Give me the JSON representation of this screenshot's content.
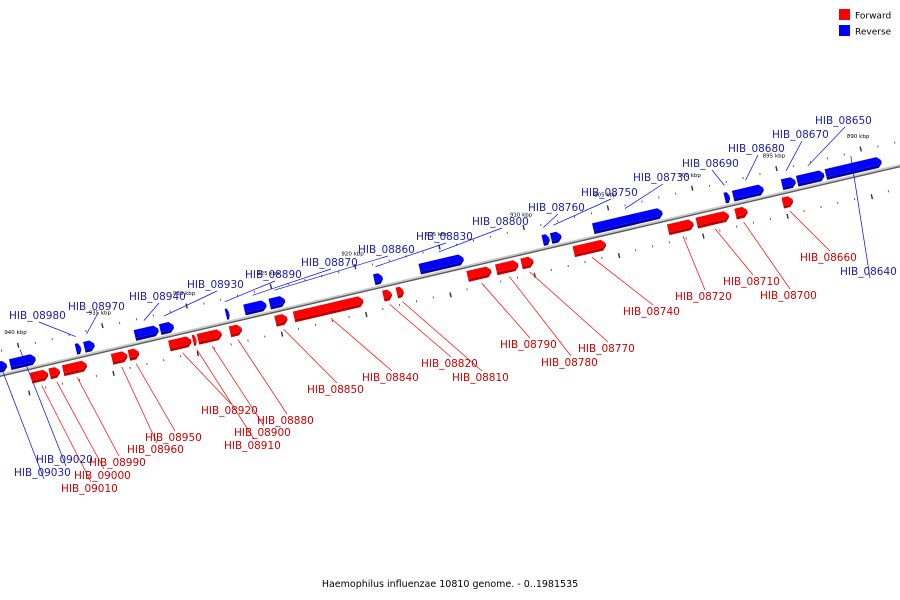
{
  "colors": {
    "forward": "#ff0000",
    "forward_side": "#c00000",
    "forward_text": "#cc0000",
    "reverse": "#0000ff",
    "reverse_side": "#0000a8",
    "reverse_text": "#1a1aaa",
    "backbone": "#8a8a8a"
  },
  "legend": {
    "forward_label": "Forward",
    "reverse_label": "Reverse"
  },
  "caption": "Haemophilus influenzae 10810 genome. - 0..1981535",
  "axis": {
    "kbp_range": [
      888,
      942
    ],
    "tick_labels": [
      {
        "kbp": 890,
        "text": "890 kbp"
      },
      {
        "kbp": 895,
        "text": "895 kbp"
      },
      {
        "kbp": 900,
        "text": "900 kbp"
      },
      {
        "kbp": 905,
        "text": "905 kbp"
      },
      {
        "kbp": 910,
        "text": "910 kbp"
      },
      {
        "kbp": 915,
        "text": "915 kbp"
      },
      {
        "kbp": 920,
        "text": "920 kbp"
      },
      {
        "kbp": 925,
        "text": "925 kbp"
      },
      {
        "kbp": 930,
        "text": "930 kbp"
      },
      {
        "kbp": 935,
        "text": "935 kbp"
      },
      {
        "kbp": 940,
        "text": "940 kbp"
      }
    ]
  },
  "genes": [
    {
      "name": "HIB_08640",
      "strand": "reverse",
      "start": 889.0,
      "end": 892.3
    },
    {
      "name": "HIB_08650",
      "strand": "reverse",
      "start": 892.4,
      "end": 894.0
    },
    {
      "name": "HIB_08670",
      "strand": "reverse",
      "start": 894.1,
      "end": 894.9
    },
    {
      "name": "HIB_08660",
      "strand": "forward",
      "start": 894.5,
      "end": 895.1
    },
    {
      "name": "HIB_08680",
      "strand": "reverse",
      "start": 896.0,
      "end": 897.8
    },
    {
      "name": "HIB_08690",
      "strand": "reverse",
      "start": 898.0,
      "end": 898.3
    },
    {
      "name": "HIB_08700",
      "strand": "forward",
      "start": 897.2,
      "end": 897.9
    },
    {
      "name": "HIB_08710",
      "strand": "forward",
      "start": 898.3,
      "end": 900.2
    },
    {
      "name": "HIB_08720",
      "strand": "forward",
      "start": 900.4,
      "end": 901.9
    },
    {
      "name": "HIB_08730",
      "strand": "reverse",
      "start": 902.0,
      "end": 906.1
    },
    {
      "name": "HIB_08740",
      "strand": "forward",
      "start": 905.6,
      "end": 907.5
    },
    {
      "name": "HIB_08750",
      "strand": "reverse",
      "start": 908.0,
      "end": 908.6
    },
    {
      "name": "HIB_08760",
      "strand": "reverse",
      "start": 908.7,
      "end": 909.1
    },
    {
      "name": "HIB_08770",
      "strand": "forward",
      "start": 909.9,
      "end": 910.6
    },
    {
      "name": "HIB_08780",
      "strand": "forward",
      "start": 910.8,
      "end": 912.1
    },
    {
      "name": "HIB_08790",
      "strand": "forward",
      "start": 912.4,
      "end": 913.8
    },
    {
      "name": "HIB_08800",
      "strand": "reverse",
      "start": 913.8,
      "end": 916.4
    },
    {
      "name": "HIB_08810",
      "strand": "forward",
      "start": 917.6,
      "end": 918.0
    },
    {
      "name": "HIB_08820",
      "strand": "forward",
      "start": 918.3,
      "end": 918.8
    },
    {
      "name": "HIB_08830",
      "strand": "reverse",
      "start": 918.6,
      "end": 919.1
    },
    {
      "name": "HIB_08840",
      "strand": "forward",
      "start": 920.0,
      "end": 924.1
    },
    {
      "name": "HIB_08850",
      "strand": "forward",
      "start": 924.5,
      "end": 925.2
    },
    {
      "name": "HIB_08860",
      "strand": "reverse",
      "start": 924.4,
      "end": 925.3
    },
    {
      "name": "HIB_08870",
      "strand": "reverse",
      "start": 925.5,
      "end": 926.8
    },
    {
      "name": "HIB_08880",
      "strand": "forward",
      "start": 927.2,
      "end": 927.9
    },
    {
      "name": "HIB_08890",
      "strand": "reverse",
      "start": 927.7,
      "end": 927.9
    },
    {
      "name": "HIB_08900",
      "strand": "forward",
      "start": 928.4,
      "end": 929.8
    },
    {
      "name": "HIB_08910",
      "strand": "forward",
      "start": 929.9,
      "end": 930.1
    },
    {
      "name": "HIB_08920",
      "strand": "forward",
      "start": 930.2,
      "end": 931.5
    },
    {
      "name": "HIB_08930",
      "strand": "reverse",
      "start": 931.0,
      "end": 931.8
    },
    {
      "name": "HIB_08940",
      "strand": "reverse",
      "start": 931.9,
      "end": 933.3
    },
    {
      "name": "HIB_08950",
      "strand": "forward",
      "start": 933.3,
      "end": 933.9
    },
    {
      "name": "HIB_08960",
      "strand": "forward",
      "start": 934.0,
      "end": 934.9
    },
    {
      "name": "HIB_08970",
      "strand": "reverse",
      "start": 935.7,
      "end": 936.3
    },
    {
      "name": "HIB_08990",
      "strand": "forward",
      "start": 936.4,
      "end": 937.8
    },
    {
      "name": "HIB_09000",
      "strand": "forward",
      "start": 938.0,
      "end": 938.6
    },
    {
      "name": "HIB_08980",
      "strand": "reverse",
      "start": 936.5,
      "end": 936.8
    },
    {
      "name": "HIB_09010",
      "strand": "forward",
      "start": 938.7,
      "end": 939.7
    },
    {
      "name": "HIB_09020",
      "strand": "reverse",
      "start": 939.2,
      "end": 940.7
    },
    {
      "name": "HIB_09030",
      "strand": "reverse",
      "start": 940.9,
      "end": 941.8
    }
  ]
}
